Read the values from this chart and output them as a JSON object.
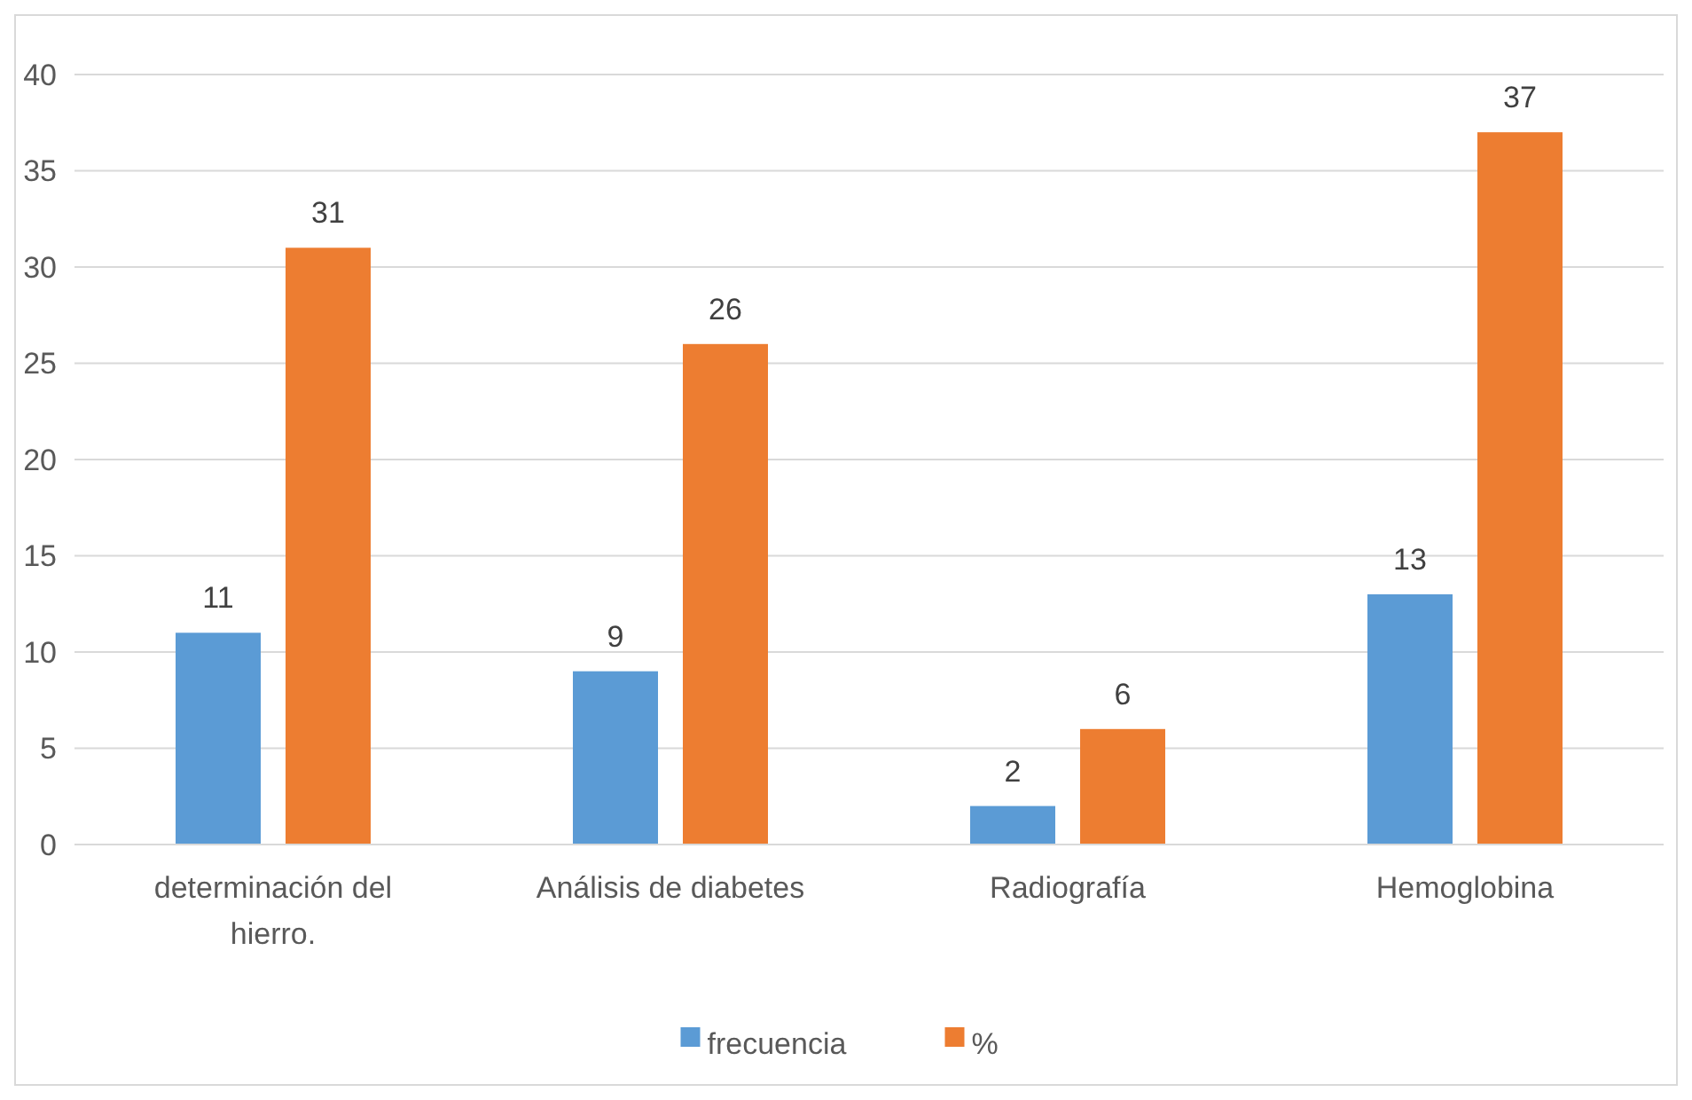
{
  "chart_data": {
    "type": "bar",
    "categories": [
      "determinación del hierro.",
      "Análisis de diabetes",
      "Radiografía",
      "Hemoglobina"
    ],
    "series": [
      {
        "name": "frecuencia",
        "color": "#5b9bd5",
        "values": [
          11,
          9,
          2,
          13
        ]
      },
      {
        "name": "%",
        "color": "#ed7d31",
        "values": [
          31,
          26,
          6,
          37
        ]
      }
    ],
    "ylim": [
      0,
      40
    ],
    "yticks": [
      0,
      5,
      10,
      15,
      20,
      25,
      30,
      35,
      40
    ],
    "grid": "y",
    "legend": "bottom",
    "data_labels": true
  }
}
